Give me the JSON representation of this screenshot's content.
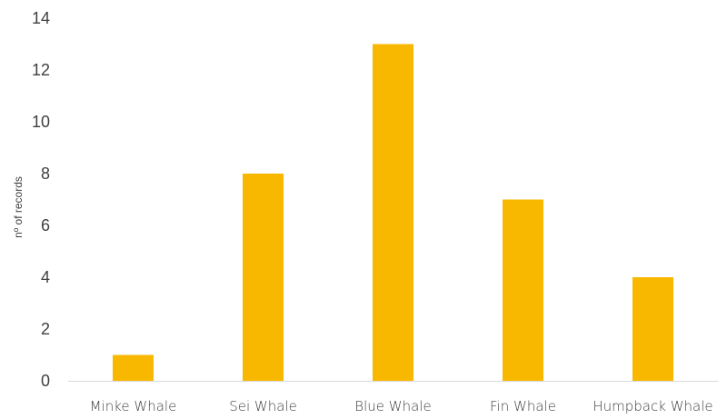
{
  "chart_data": {
    "type": "bar",
    "title": "",
    "xlabel": "",
    "ylabel": "nº of records",
    "categories": [
      "Minke Whale",
      "Sei Whale",
      "Blue Whale",
      "Fin Whale",
      "Humpback Whale"
    ],
    "values": [
      1,
      8,
      13,
      7,
      4
    ],
    "yticks": [
      "0",
      "2",
      "4",
      "6",
      "8",
      "10",
      "12",
      "14"
    ],
    "ylim": [
      0,
      14
    ],
    "grid": false,
    "legend": "none",
    "colors": {
      "bar": "#F9B800",
      "axis": "#D9D9D9",
      "text": "#404040"
    }
  }
}
